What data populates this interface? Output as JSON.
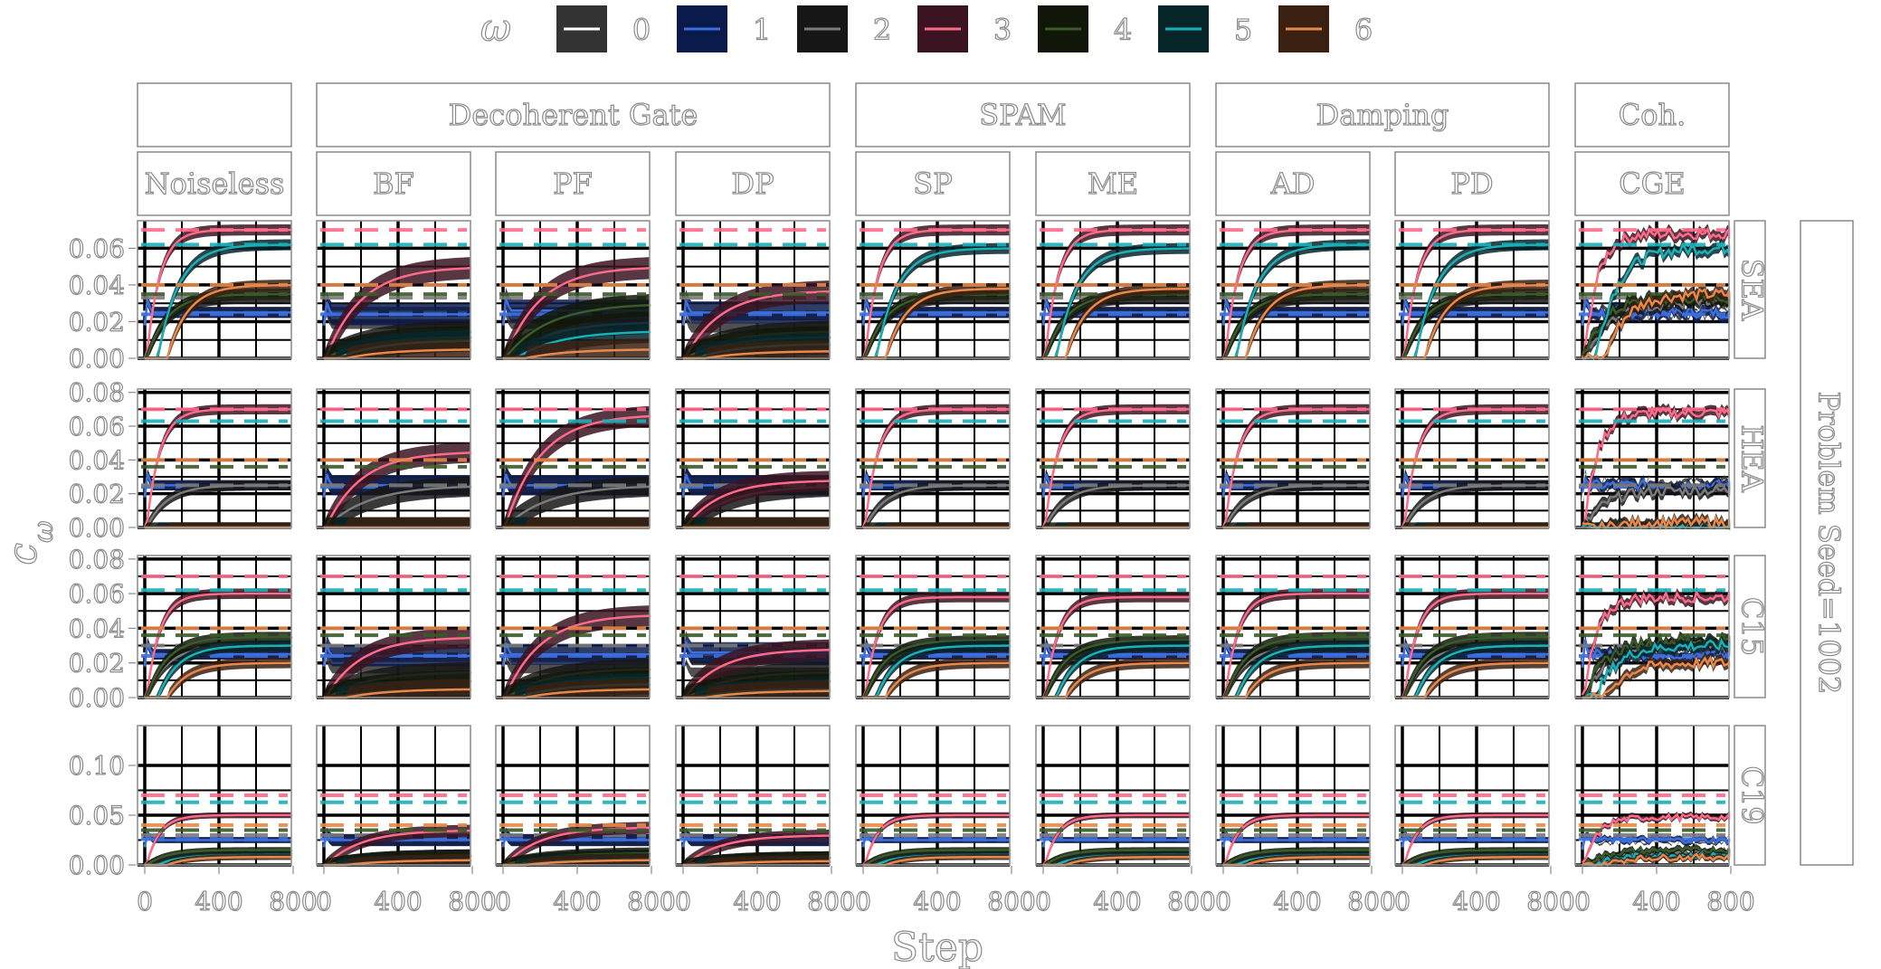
{
  "chart_data": {
    "type": "line",
    "legend": {
      "title": "ω",
      "placement": "top",
      "entries": [
        {
          "label": "0",
          "color": "#ffffff",
          "fill": "#333333"
        },
        {
          "label": "1",
          "color": "#3b6fe0",
          "fill": "#0a1a4a"
        },
        {
          "label": "2",
          "color": "#7a7a7a",
          "fill": "#161616"
        },
        {
          "label": "3",
          "color": "#ff6a8a",
          "fill": "#3a1420"
        },
        {
          "label": "4",
          "color": "#3a5a2a",
          "fill": "#111708"
        },
        {
          "label": "5",
          "color": "#1ab0b8",
          "fill": "#06262a"
        },
        {
          "label": "6",
          "color": "#e8884a",
          "fill": "#3a2010"
        }
      ]
    },
    "xlabel": "Step",
    "ylabel": "c_ω",
    "x_ticks": [
      "0",
      "400",
      "800"
    ],
    "xlim": [
      0,
      1000
    ],
    "grid": true,
    "column_groups": [
      {
        "label": "",
        "span": 1
      },
      {
        "label": "Decoherent Gate",
        "span": 3
      },
      {
        "label": "SPAM",
        "span": 2
      },
      {
        "label": "Damping",
        "span": 2
      },
      {
        "label": "Coh.",
        "span": 1
      }
    ],
    "columns": [
      "Noiseless",
      "BF",
      "PF",
      "DP",
      "SP",
      "ME",
      "AD",
      "PD",
      "CGE"
    ],
    "right_strip": "Problem Seed=1002",
    "rows": [
      {
        "label": "SEA",
        "y_ticks": [
          "0.00",
          "0.02",
          "0.04",
          "0.06"
        ],
        "ylim": [
          0,
          0.075
        ]
      },
      {
        "label": "HEA",
        "y_ticks": [
          "0.00",
          "0.02",
          "0.04",
          "0.06",
          "0.08"
        ],
        "ylim": [
          0,
          0.082
        ]
      },
      {
        "label": "C15",
        "y_ticks": [
          "0.00",
          "0.02",
          "0.04",
          "0.06",
          "0.08"
        ],
        "ylim": [
          0,
          0.082
        ]
      },
      {
        "label": "C19",
        "y_ticks": [
          "0.00",
          "0.05",
          "0.10"
        ],
        "ylim": [
          0,
          0.14
        ]
      }
    ],
    "targets": {
      "SEA": [
        0.025,
        0.024,
        0.033,
        0.07,
        0.035,
        0.062,
        0.04
      ],
      "HEA": [
        0.025,
        0.024,
        0.025,
        0.07,
        0.036,
        0.063,
        0.04
      ],
      "C15": [
        0.025,
        0.024,
        0.03,
        0.07,
        0.036,
        0.062,
        0.04
      ],
      "C19": [
        0.025,
        0.026,
        0.03,
        0.07,
        0.035,
        0.063,
        0.04
      ]
    },
    "series_final": {
      "SEA": {
        "Noiseless": [
          0.025,
          0.025,
          0.033,
          0.07,
          0.035,
          0.062,
          0.04
        ],
        "BF": [
          0.022,
          0.024,
          0.015,
          0.05,
          0.012,
          0.01,
          0.005
        ],
        "PF": [
          0.022,
          0.026,
          0.02,
          0.05,
          0.03,
          0.015,
          0.005
        ],
        "DP": [
          0.02,
          0.025,
          0.015,
          0.037,
          0.012,
          0.008,
          0.004
        ],
        "SP": [
          0.025,
          0.025,
          0.033,
          0.07,
          0.035,
          0.06,
          0.038
        ],
        "ME": [
          0.025,
          0.025,
          0.033,
          0.07,
          0.035,
          0.06,
          0.038
        ],
        "AD": [
          0.025,
          0.025,
          0.033,
          0.07,
          0.035,
          0.062,
          0.04
        ],
        "PD": [
          0.025,
          0.025,
          0.033,
          0.07,
          0.035,
          0.062,
          0.04
        ],
        "CGE": [
          0.025,
          0.025,
          0.03,
          0.068,
          0.033,
          0.06,
          0.035
        ]
      },
      "HEA": {
        "Noiseless": [
          0.025,
          0.025,
          0.025,
          0.07,
          0.0,
          0.0,
          0.0
        ],
        "BF": [
          0.025,
          0.025,
          0.025,
          0.045,
          0.0,
          0.0,
          0.0
        ],
        "PF": [
          0.025,
          0.025,
          0.025,
          0.067,
          0.0,
          0.0,
          0.0
        ],
        "DP": [
          0.025,
          0.025,
          0.025,
          0.028,
          0.0,
          0.0,
          0.0
        ],
        "SP": [
          0.025,
          0.025,
          0.025,
          0.07,
          0.0,
          0.0,
          0.0
        ],
        "ME": [
          0.025,
          0.025,
          0.025,
          0.07,
          0.0,
          0.0,
          0.0
        ],
        "AD": [
          0.025,
          0.025,
          0.025,
          0.07,
          0.0,
          0.0,
          0.0
        ],
        "PD": [
          0.025,
          0.025,
          0.025,
          0.07,
          0.0,
          0.0,
          0.0
        ],
        "CGE": [
          0.025,
          0.025,
          0.022,
          0.068,
          0.0,
          0.0,
          0.003
        ]
      },
      "C15": {
        "Noiseless": [
          0.025,
          0.025,
          0.03,
          0.06,
          0.035,
          0.03,
          0.02
        ],
        "BF": [
          0.02,
          0.024,
          0.015,
          0.035,
          0.01,
          0.005,
          0.005
        ],
        "PF": [
          0.02,
          0.025,
          0.017,
          0.048,
          0.012,
          0.008,
          0.005
        ],
        "DP": [
          0.018,
          0.026,
          0.015,
          0.028,
          0.01,
          0.005,
          0.004
        ],
        "SP": [
          0.025,
          0.025,
          0.03,
          0.058,
          0.033,
          0.03,
          0.02
        ],
        "ME": [
          0.025,
          0.025,
          0.03,
          0.058,
          0.033,
          0.03,
          0.02
        ],
        "AD": [
          0.025,
          0.025,
          0.03,
          0.06,
          0.035,
          0.03,
          0.02
        ],
        "PD": [
          0.025,
          0.025,
          0.03,
          0.06,
          0.035,
          0.03,
          0.02
        ],
        "CGE": [
          0.025,
          0.025,
          0.03,
          0.058,
          0.033,
          0.03,
          0.02
        ]
      },
      "C19": {
        "Noiseless": [
          0.025,
          0.025,
          0.012,
          0.05,
          0.015,
          0.01,
          0.008
        ],
        "BF": [
          0.025,
          0.025,
          0.01,
          0.035,
          0.01,
          0.005,
          0.005
        ],
        "PF": [
          0.025,
          0.025,
          0.01,
          0.038,
          0.012,
          0.006,
          0.005
        ],
        "DP": [
          0.025,
          0.025,
          0.008,
          0.03,
          0.008,
          0.004,
          0.004
        ],
        "SP": [
          0.025,
          0.025,
          0.012,
          0.05,
          0.015,
          0.01,
          0.008
        ],
        "ME": [
          0.025,
          0.025,
          0.012,
          0.05,
          0.015,
          0.01,
          0.008
        ],
        "AD": [
          0.025,
          0.025,
          0.012,
          0.05,
          0.015,
          0.01,
          0.008
        ],
        "PD": [
          0.025,
          0.025,
          0.012,
          0.05,
          0.015,
          0.01,
          0.008
        ],
        "CGE": [
          0.025,
          0.025,
          0.012,
          0.048,
          0.015,
          0.01,
          0.008
        ]
      }
    }
  }
}
